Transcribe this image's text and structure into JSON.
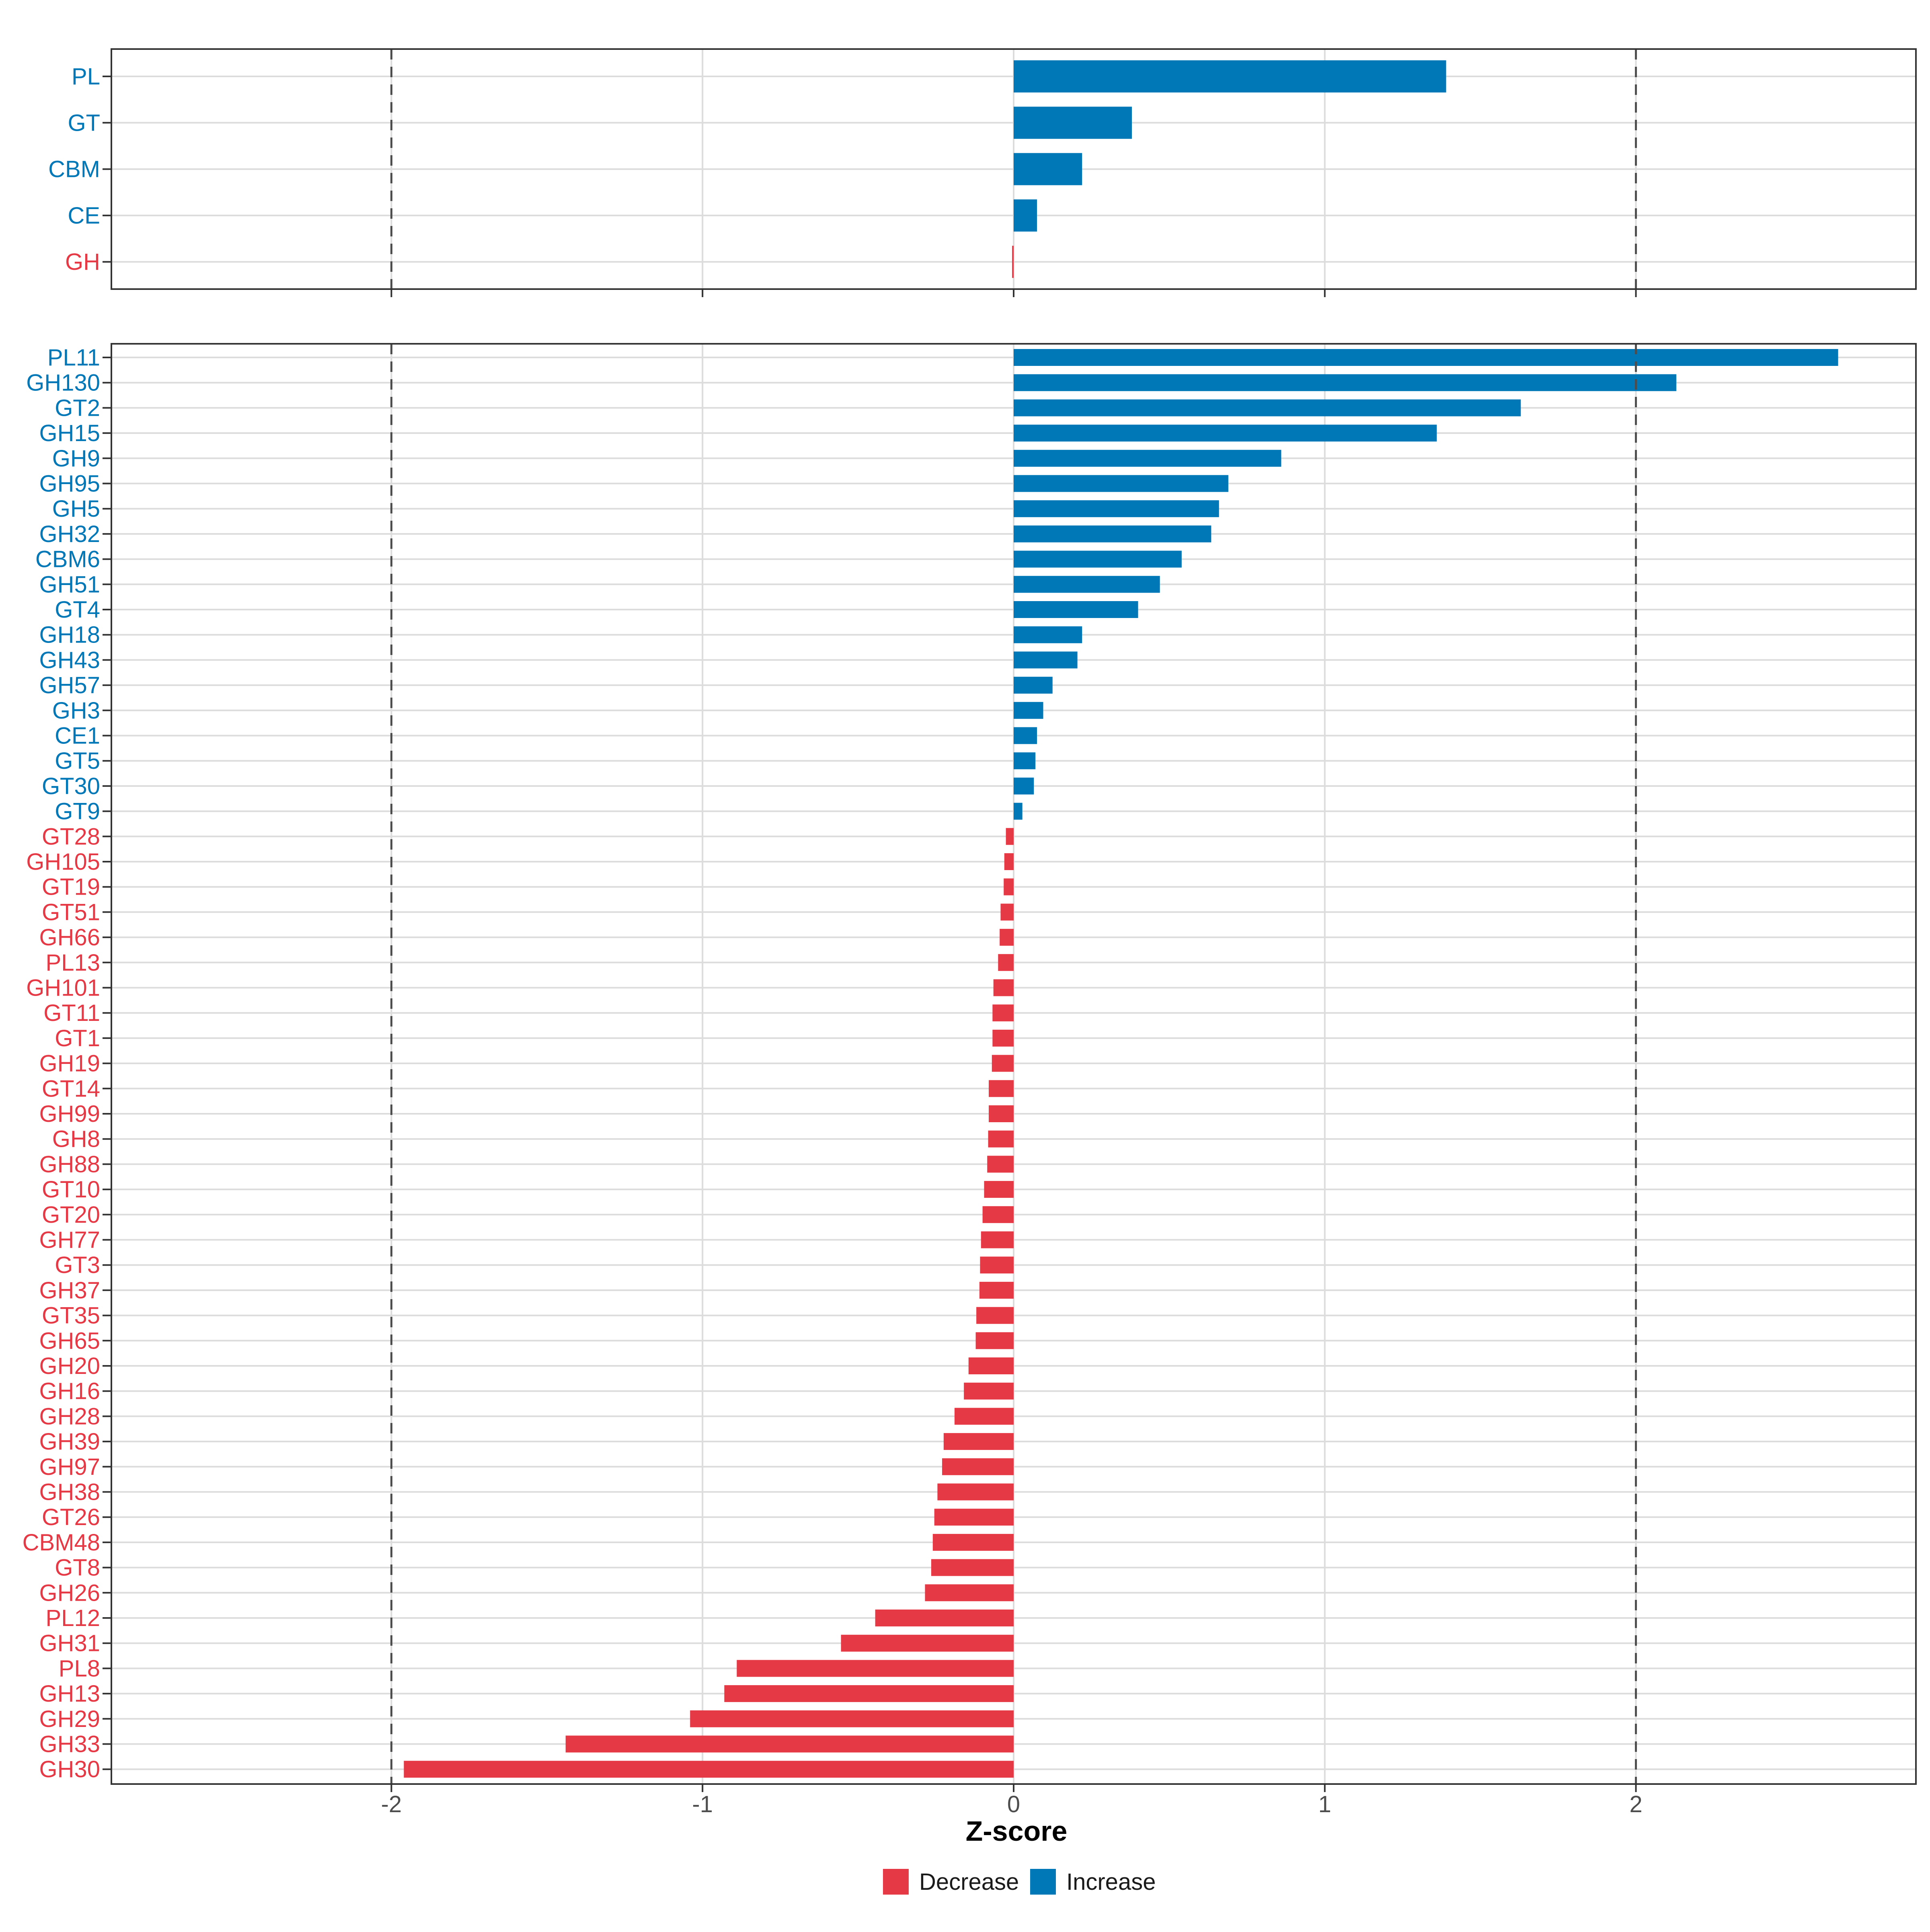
{
  "chart_data": [
    {
      "type": "bar",
      "orientation": "horizontal",
      "panel": "top",
      "categories": [
        "PL",
        "GT",
        "CBM",
        "CE",
        "GH"
      ],
      "values": [
        1.39,
        0.38,
        0.22,
        0.075,
        -0.005
      ],
      "xlim": [
        -2.9,
        2.9
      ],
      "reference_lines": [
        -2,
        2
      ],
      "grid": true
    },
    {
      "type": "bar",
      "orientation": "horizontal",
      "panel": "bottom",
      "categories": [
        "PL11",
        "GH130",
        "GT2",
        "GH15",
        "GH9",
        "GH95",
        "GH5",
        "GH32",
        "CBM6",
        "GH51",
        "GT4",
        "GH18",
        "GH43",
        "GH57",
        "GH3",
        "CE1",
        "GT5",
        "GT30",
        "GT9",
        "GT28",
        "GH105",
        "GT19",
        "GT51",
        "GH66",
        "PL13",
        "GH101",
        "GT11",
        "GT1",
        "GH19",
        "GT14",
        "GH99",
        "GH8",
        "GH88",
        "GT10",
        "GT20",
        "GH77",
        "GT3",
        "GH37",
        "GT35",
        "GH65",
        "GH20",
        "GH16",
        "GH28",
        "GH39",
        "GH97",
        "GH38",
        "GT26",
        "CBM48",
        "GT8",
        "GH26",
        "PL12",
        "GH31",
        "PL8",
        "GH13",
        "GH29",
        "GH33",
        "GH30"
      ],
      "values": [
        2.65,
        2.13,
        1.63,
        1.36,
        0.86,
        0.69,
        0.66,
        0.635,
        0.54,
        0.47,
        0.4,
        0.22,
        0.205,
        0.125,
        0.095,
        0.075,
        0.07,
        0.065,
        0.028,
        -0.025,
        -0.03,
        -0.032,
        -0.042,
        -0.045,
        -0.05,
        -0.065,
        -0.068,
        -0.068,
        -0.07,
        -0.08,
        -0.08,
        -0.082,
        -0.085,
        -0.095,
        -0.1,
        -0.105,
        -0.108,
        -0.11,
        -0.12,
        -0.122,
        -0.145,
        -0.16,
        -0.19,
        -0.225,
        -0.23,
        -0.245,
        -0.255,
        -0.26,
        -0.265,
        -0.285,
        -0.445,
        -0.555,
        -0.89,
        -0.93,
        -1.04,
        -1.44,
        -1.96
      ],
      "xlim": [
        -2.9,
        2.9
      ],
      "xticks": [
        -2,
        -1,
        0,
        1,
        2
      ],
      "xtick_labels": [
        "-2",
        "-1",
        "0",
        "1",
        "2"
      ],
      "xlabel": "Z-score",
      "reference_lines": [
        -2,
        2
      ],
      "grid": true
    }
  ],
  "legend": {
    "position": "bottom",
    "items": [
      {
        "label": "Decrease",
        "color": "#e63946"
      },
      {
        "label": "Increase",
        "color": "#0077b6"
      }
    ]
  }
}
